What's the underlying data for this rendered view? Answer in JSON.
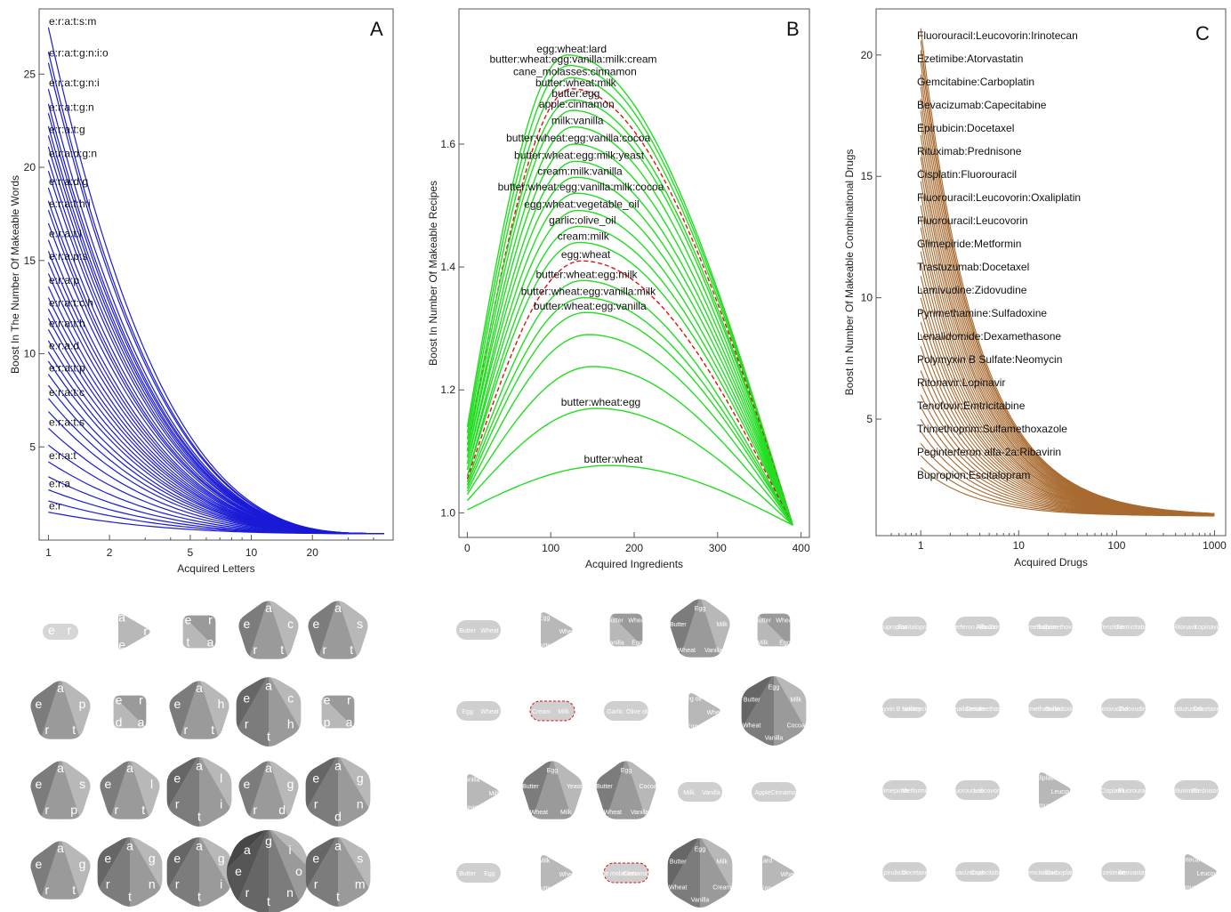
{
  "colors": {
    "panel_a_curve": "#1a1ad6",
    "panel_b_curve": "#22dd22",
    "panel_b_highlight": "#dd1111",
    "panel_c_curve": "#a86a30",
    "shape_light": "#d4d4d4",
    "shape_mid": "#a0a0a0",
    "shape_dark": "#5a5a5a"
  },
  "chart_data": [
    {
      "panel": "A",
      "type": "line",
      "xlabel": "Acquired Letters",
      "ylabel": "Boost In The Number Of Makeable Words",
      "xscale": "log",
      "x_ticks": [
        "1",
        "2",
        "5",
        "10",
        "20"
      ],
      "y_ticks": [
        "5",
        "10",
        "15",
        "20",
        "25"
      ],
      "xlim": [
        0.9,
        50
      ],
      "ylim": [
        0,
        28.5
      ],
      "x_end": 45,
      "grid": false,
      "labels": [
        "e:r:a:t:s:m",
        "e:r:a:t:g:n:i:o",
        "e:r:a:t:g:n:i",
        "e:r:a:t:g:n",
        "e:r:a:t:g",
        "e:r:a:d:g:n",
        "e:r:a:d:g",
        "e:r:a:t:h:i",
        "e:r:a:t:l",
        "e:r:a:p:s",
        "e:r:a:p",
        "e:r:a:t:c:h",
        "e:r:a:t:h",
        "e:r:a:d",
        "e:r:a:t:p",
        "e:r:a:t:c",
        "e:r:a:t:s",
        "e:r:a:t",
        "e:r:a",
        "e:r"
      ],
      "label_starts": [
        27.5,
        25.8,
        24.2,
        22.9,
        21.7,
        20.4,
        18.9,
        17.7,
        16.1,
        14.9,
        13.6,
        12.4,
        11.3,
        10.1,
        8.9,
        7.6,
        6.0,
        4.2,
        2.7,
        1.5
      ],
      "start_values": [
        27.5,
        26.2,
        25.6,
        24.2,
        23.4,
        22.9,
        22.2,
        21.7,
        21.1,
        20.4,
        19.8,
        18.9,
        18.2,
        17.7,
        17.0,
        16.1,
        15.5,
        14.9,
        14.3,
        13.6,
        13.0,
        12.4,
        11.9,
        11.3,
        10.7,
        10.1,
        9.6,
        8.9,
        8.3,
        7.6,
        6.9,
        6.0,
        5.1,
        4.2,
        3.4,
        2.7,
        2.1,
        1.5
      ],
      "end_value": 0.35
    },
    {
      "panel": "B",
      "type": "line",
      "xlabel": "Acquired Ingredients",
      "ylabel": "Boost In Number Of Makeable Recipes",
      "x_ticks": [
        0,
        100,
        200,
        300,
        400
      ],
      "y_ticks": [
        1.0,
        1.2,
        1.4,
        1.6
      ],
      "xlim": [
        -10,
        410
      ],
      "ylim": [
        0.96,
        1.82
      ],
      "grid": false,
      "labels": [
        "egg:wheat:lard",
        "butter:wheat:egg:vanilla:milk:cream",
        "cane_molasses:cinnamon",
        "butter:wheat:milk",
        "butter:egg",
        "apple:cinnamon",
        "milk:vanilla",
        "butter:wheat:egg:vanilla:cocoa",
        "butter:wheat:egg:milk:yeast",
        "cream:milk:vanilla",
        "butter:wheat:egg:vanilla:milk:cocoa",
        "egg:wheat:vegetable_oil",
        "garlic:olive_oil",
        "cream:milk",
        "egg:wheat",
        "butter:wheat:egg:milk",
        "butter:wheat:egg:vanilla:milk",
        "butter:wheat:egg:vanilla",
        "butter:wheat:egg",
        "butter:wheat"
      ],
      "series": [
        {
          "peak": 1.745,
          "peak_x": 120,
          "start": 1.14
        },
        {
          "peak": 1.728,
          "peak_x": 122,
          "start": 1.13
        },
        {
          "peak": 1.708,
          "peak_x": 124,
          "start": 1.12
        },
        {
          "peak": 1.69,
          "peak_x": 125,
          "start": 1.1,
          "highlight": true
        },
        {
          "peak": 1.672,
          "peak_x": 125,
          "start": 1.11
        },
        {
          "peak": 1.655,
          "peak_x": 126,
          "start": 1.1
        },
        {
          "peak": 1.628,
          "peak_x": 127,
          "start": 1.09
        },
        {
          "peak": 1.6,
          "peak_x": 128,
          "start": 1.09
        },
        {
          "peak": 1.572,
          "peak_x": 129,
          "start": 1.08
        },
        {
          "peak": 1.546,
          "peak_x": 130,
          "start": 1.08
        },
        {
          "peak": 1.52,
          "peak_x": 131,
          "start": 1.07
        },
        {
          "peak": 1.492,
          "peak_x": 132,
          "start": 1.07
        },
        {
          "peak": 1.466,
          "peak_x": 133,
          "start": 1.06
        },
        {
          "peak": 1.44,
          "peak_x": 134,
          "start": 1.06
        },
        {
          "peak": 1.41,
          "peak_x": 137,
          "start": 1.055,
          "highlight": true
        },
        {
          "peak": 1.378,
          "peak_x": 138,
          "start": 1.05
        },
        {
          "peak": 1.35,
          "peak_x": 140,
          "start": 1.045
        },
        {
          "peak": 1.326,
          "peak_x": 142,
          "start": 1.04
        },
        {
          "peak": 1.29,
          "peak_x": 145,
          "start": 1.035
        },
        {
          "peak": 1.238,
          "peak_x": 150,
          "start": 1.03
        },
        {
          "peak": 1.17,
          "peak_x": 155,
          "start": 1.02
        },
        {
          "peak": 1.077,
          "peak_x": 170,
          "start": 1.005
        }
      ],
      "end": {
        "x": 390,
        "y": 0.98
      }
    },
    {
      "panel": "C",
      "type": "line",
      "xlabel": "Acquired Drugs",
      "ylabel": "Boost In Number Of Makeable Combinational Drugs",
      "xscale": "log",
      "x_ticks": [
        "1",
        "10",
        "100",
        "1000"
      ],
      "y_ticks": [
        "5",
        "10",
        "15",
        "20"
      ],
      "xlim": [
        0.35,
        1300
      ],
      "ylim": [
        0.2,
        21.9
      ],
      "x_end": 1000,
      "grid": false,
      "labels": [
        "Fluorouracil:Leucovorin:Irinotecan",
        "Ezetimibe:Atorvastatin",
        "Gemcitabine:Carboplatin",
        "Bevacizumab:Capecitabine",
        "Epirubicin:Docetaxel",
        "Rituximab:Prednisone",
        "Cisplatin:Fluorouracil",
        "Fluorouracil:Leucovorin:Oxaliplatin",
        "Fluorouracil:Leucovorin",
        "Glimepiride:Metformin",
        "Trastuzumab:Docetaxel",
        "Lamivudine:Zidovudine",
        "Pyrimethamine:Sulfadoxine",
        "Lenalidomide:Dexamethasone",
        "Polymyxin B Sulfate:Neomycin",
        "Ritonavir:Lopinavir",
        "Tenofovir:Emtricitabine",
        "Trimethoprim:Sulfamethoxazole",
        "Peginterferon alfa-2a:Ribavirin",
        "Bupropion:Escitalopram"
      ],
      "start_values": [
        21.1,
        20.6,
        20.2,
        19.7,
        19.2,
        18.7,
        18.2,
        17.7,
        17.2,
        16.7,
        16.2,
        15.8,
        15.3,
        14.8,
        14.3,
        13.8,
        13.3,
        12.9,
        12.4,
        11.9,
        11.4,
        10.9,
        10.4,
        10.0,
        9.5,
        9.0,
        8.5,
        8.0,
        7.5,
        7.0,
        6.5,
        6.0,
        5.5,
        5.0,
        4.5,
        4.0,
        3.5,
        3.0
      ],
      "end_value": 1.0
    }
  ],
  "panel_letters": [
    "A",
    "B",
    "C"
  ],
  "shapes_a": [
    {
      "type": "pill",
      "letters": [
        "e",
        "r"
      ]
    },
    {
      "type": "tri",
      "letters": [
        "r",
        "e",
        "a"
      ]
    },
    {
      "type": "square",
      "letters": [
        "a",
        "t",
        "e",
        "r"
      ]
    },
    {
      "type": "penta",
      "letters": [
        "a",
        "c",
        "t",
        "r",
        "e"
      ]
    },
    {
      "type": "penta",
      "letters": [
        "a",
        "s",
        "t",
        "r",
        "e"
      ]
    },
    {
      "type": "penta",
      "letters": [
        "a",
        "p",
        "t",
        "r",
        "e"
      ]
    },
    {
      "type": "square",
      "letters": [
        "a",
        "d",
        "e",
        "r"
      ]
    },
    {
      "type": "penta",
      "letters": [
        "a",
        "h",
        "t",
        "r",
        "e"
      ]
    },
    {
      "type": "hexa",
      "letters": [
        "a",
        "c",
        "h",
        "t",
        "r",
        "e"
      ]
    },
    {
      "type": "square",
      "letters": [
        "a",
        "p",
        "e",
        "r"
      ]
    },
    {
      "type": "penta",
      "letters": [
        "a",
        "s",
        "p",
        "r",
        "e"
      ]
    },
    {
      "type": "penta",
      "letters": [
        "a",
        "l",
        "t",
        "r",
        "e"
      ]
    },
    {
      "type": "hexa",
      "letters": [
        "a",
        "l",
        "i",
        "t",
        "r",
        "e"
      ]
    },
    {
      "type": "penta",
      "letters": [
        "a",
        "g",
        "d",
        "r",
        "e"
      ]
    },
    {
      "type": "hexa",
      "letters": [
        "a",
        "g",
        "n",
        "d",
        "r",
        "e"
      ]
    },
    {
      "type": "penta",
      "letters": [
        "a",
        "g",
        "t",
        "r",
        "e"
      ]
    },
    {
      "type": "hexa",
      "letters": [
        "a",
        "g",
        "n",
        "t",
        "r",
        "e"
      ]
    },
    {
      "type": "hexa",
      "letters": [
        "a",
        "g",
        "i",
        "t",
        "r",
        "e"
      ]
    },
    {
      "type": "octa",
      "letters": [
        "g",
        "i",
        "o",
        "n",
        "t",
        "r",
        "e",
        "a"
      ]
    },
    {
      "type": "hexa",
      "letters": [
        "a",
        "s",
        "m",
        "t",
        "r",
        "e"
      ]
    }
  ],
  "shapes_b": [
    {
      "type": "pill",
      "letters": [
        "Butter",
        "Wheat"
      ]
    },
    {
      "type": "tri",
      "letters": [
        "Wheat",
        "Butter",
        "Egg"
      ]
    },
    {
      "type": "square",
      "letters": [
        "Egg",
        "Vanilla",
        "Butter",
        "Wheat"
      ]
    },
    {
      "type": "penta",
      "letters": [
        "Egg",
        "Milk",
        "Vanilla",
        "Wheat",
        "Butter"
      ]
    },
    {
      "type": "square",
      "letters": [
        "Egg",
        "Milk",
        "Butter",
        "Wheat"
      ]
    },
    {
      "type": "pill",
      "letters": [
        "Egg",
        "Wheat"
      ]
    },
    {
      "type": "pill",
      "letters": [
        "Cream",
        "Milk"
      ],
      "dashed": true
    },
    {
      "type": "pill",
      "letters": [
        "Garlic",
        "Olive oil"
      ]
    },
    {
      "type": "tri",
      "letters": [
        "Wheat",
        "Egg",
        "Veg oil"
      ]
    },
    {
      "type": "hexa",
      "letters": [
        "Egg",
        "Milk",
        "Cocoa",
        "Vanilla",
        "Wheat",
        "Butter"
      ]
    },
    {
      "type": "tri",
      "letters": [
        "Milk",
        "Cream",
        "Vanilla"
      ]
    },
    {
      "type": "penta",
      "letters": [
        "Egg",
        "Yeast",
        "Milk",
        "Wheat",
        "Butter"
      ]
    },
    {
      "type": "penta",
      "letters": [
        "Egg",
        "Cocoa",
        "Vanilla",
        "Wheat",
        "Butter"
      ]
    },
    {
      "type": "pill",
      "letters": [
        "Milk",
        "Vanilla"
      ]
    },
    {
      "type": "pill",
      "letters": [
        "Apple",
        "Cinnamon"
      ]
    },
    {
      "type": "pill",
      "letters": [
        "Butter",
        "Egg"
      ]
    },
    {
      "type": "tri",
      "letters": [
        "Wheat",
        "Butter",
        "Milk"
      ]
    },
    {
      "type": "pill",
      "letters": [
        "Cane molasses",
        "Cinnamon"
      ],
      "dashed": true
    },
    {
      "type": "hexa",
      "letters": [
        "Egg",
        "Milk",
        "Cream",
        "Vanilla",
        "Wheat",
        "Butter"
      ]
    },
    {
      "type": "tri",
      "letters": [
        "Wheat",
        "Egg",
        "Lard"
      ]
    }
  ],
  "shapes_c": [
    {
      "type": "pill",
      "letters": [
        "Bupropion",
        "Escitalopram"
      ]
    },
    {
      "type": "pill",
      "letters": [
        "Peginterferon Alfa-2a",
        "Ribavirin"
      ]
    },
    {
      "type": "pill",
      "letters": [
        "Trimethoprim",
        "Sulfamethoxazole"
      ]
    },
    {
      "type": "pill",
      "letters": [
        "Tenofovir",
        "Emtricitabine"
      ]
    },
    {
      "type": "pill",
      "letters": [
        "Ritonavir",
        "Lopinavir"
      ]
    },
    {
      "type": "pill",
      "letters": [
        "Polymyxin B sulfate",
        "Neomycin"
      ]
    },
    {
      "type": "pill",
      "letters": [
        "Lenalidomide",
        "Dexamethasone"
      ]
    },
    {
      "type": "pill",
      "letters": [
        "Pyrimethamine",
        "Sulfadoxine"
      ]
    },
    {
      "type": "pill",
      "letters": [
        "Lamivudine",
        "Zidovudine"
      ]
    },
    {
      "type": "pill",
      "letters": [
        "Trastuzumab",
        "Docetaxel"
      ]
    },
    {
      "type": "pill",
      "letters": [
        "Glimepiride",
        "Metformin"
      ]
    },
    {
      "type": "pill",
      "letters": [
        "Fluorouracil",
        "Leucovorin"
      ]
    },
    {
      "type": "tri",
      "letters": [
        "Leucovorin",
        "Fluorouracil",
        "Oxaliplatin"
      ]
    },
    {
      "type": "pill",
      "letters": [
        "Cisplatin",
        "Fluorouracil"
      ]
    },
    {
      "type": "pill",
      "letters": [
        "Rituximab",
        "Prednisone"
      ]
    },
    {
      "type": "pill",
      "letters": [
        "Epirubicin",
        "Docetaxel"
      ]
    },
    {
      "type": "pill",
      "letters": [
        "Bevacizumab",
        "Capecitabine"
      ]
    },
    {
      "type": "pill",
      "letters": [
        "Gemcitabine",
        "Carboplatin"
      ]
    },
    {
      "type": "pill",
      "letters": [
        "Ezetimibe",
        "Atorvastatin"
      ]
    },
    {
      "type": "tri",
      "letters": [
        "Leucovorin",
        "Fluorouracil",
        "Irinotecan"
      ]
    }
  ]
}
